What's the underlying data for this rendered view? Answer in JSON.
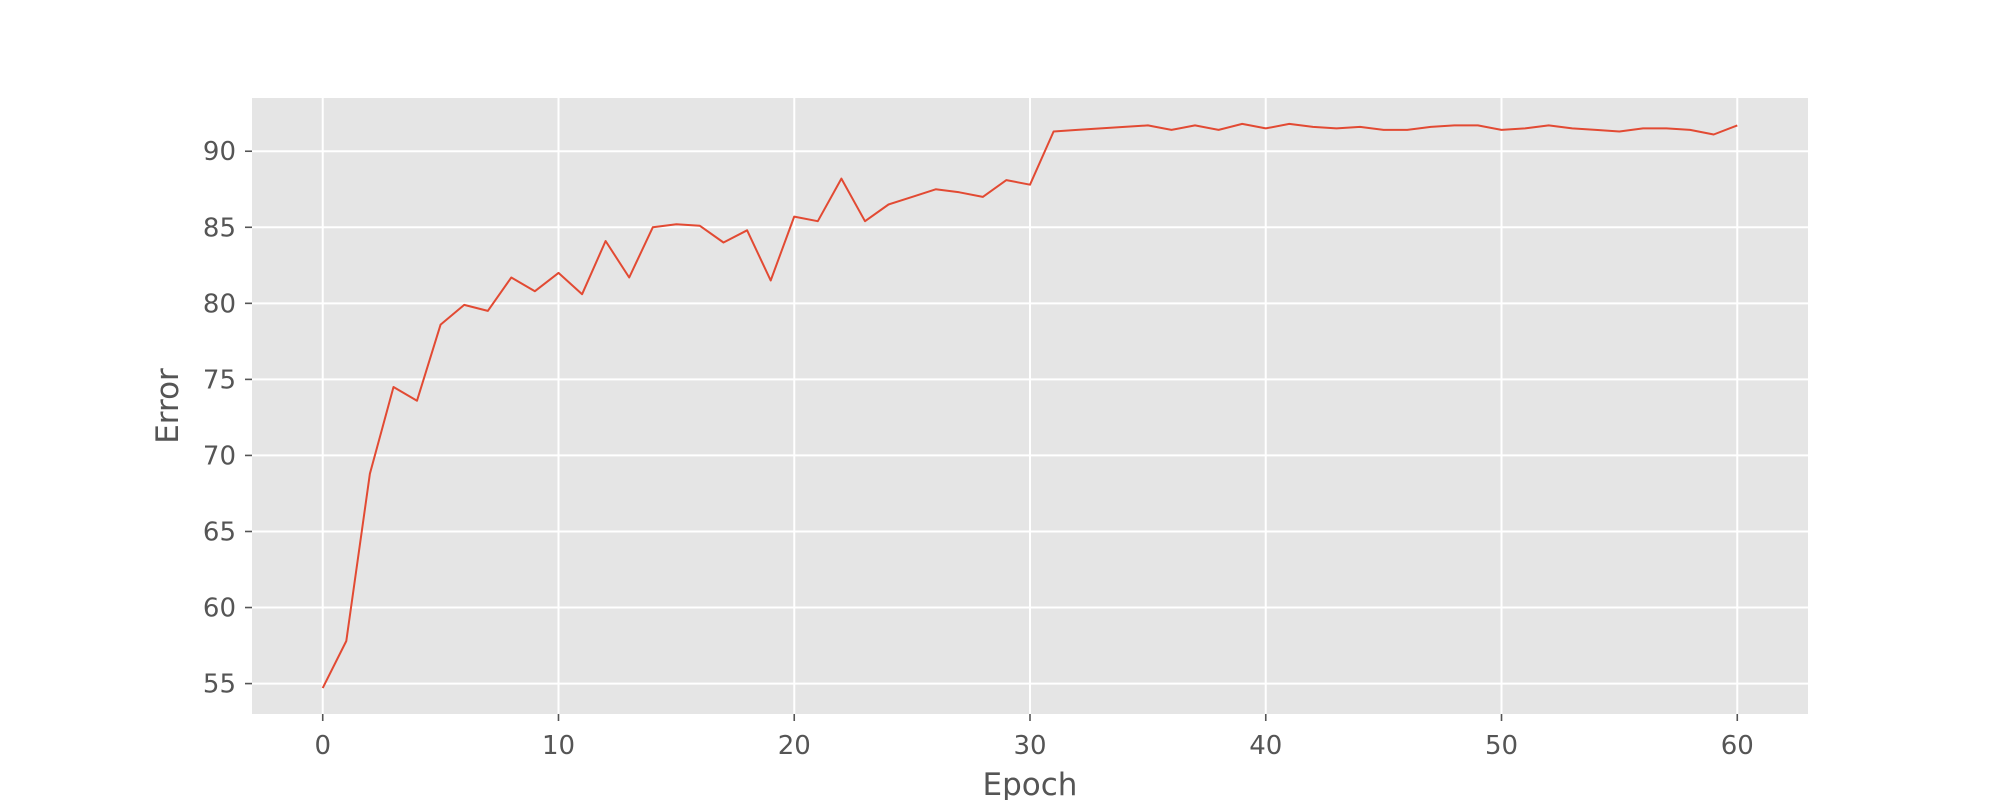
{
  "chart_data": {
    "type": "line",
    "title": "",
    "xlabel": "Epoch",
    "ylabel": "Error",
    "xlim": [
      -3,
      63
    ],
    "ylim": [
      53.0,
      93.5
    ],
    "xticks": [
      0,
      10,
      20,
      30,
      40,
      50,
      60
    ],
    "yticks": [
      55,
      60,
      65,
      70,
      75,
      80,
      85,
      90
    ],
    "grid": true,
    "legend": "none",
    "colors": {
      "background": "#e5e5e5",
      "line": "#e24a33",
      "grid": "#ffffff",
      "text": "#555555"
    },
    "series": [
      {
        "x": [
          0,
          1,
          2,
          3,
          4,
          5,
          6,
          7,
          8,
          9,
          10,
          11,
          12,
          13,
          14,
          15,
          16,
          17,
          18,
          19,
          20,
          21,
          22,
          23,
          24,
          25,
          26,
          27,
          28,
          29,
          30,
          31,
          32,
          33,
          34,
          35,
          36,
          37,
          38,
          39,
          40,
          41,
          42,
          43,
          44,
          45,
          46,
          47,
          48,
          49,
          50,
          51,
          52,
          53,
          54,
          55,
          56,
          57,
          58,
          59,
          60
        ],
        "y": [
          54.7,
          57.8,
          68.8,
          74.5,
          73.6,
          78.6,
          79.9,
          79.5,
          81.7,
          80.8,
          82.0,
          80.6,
          84.1,
          81.7,
          85.0,
          85.2,
          85.1,
          84.0,
          84.8,
          81.5,
          85.7,
          85.4,
          88.2,
          85.4,
          86.5,
          87.0,
          87.5,
          87.3,
          87.0,
          88.1,
          87.8,
          91.3,
          91.4,
          91.5,
          91.6,
          91.7,
          91.4,
          91.7,
          91.4,
          91.8,
          91.5,
          91.8,
          91.6,
          91.5,
          91.6,
          91.4,
          91.4,
          91.6,
          91.7,
          91.7,
          91.4,
          91.5,
          91.7,
          91.5,
          91.4,
          91.3,
          91.5,
          91.5,
          91.4,
          91.1,
          91.7
        ]
      }
    ]
  }
}
